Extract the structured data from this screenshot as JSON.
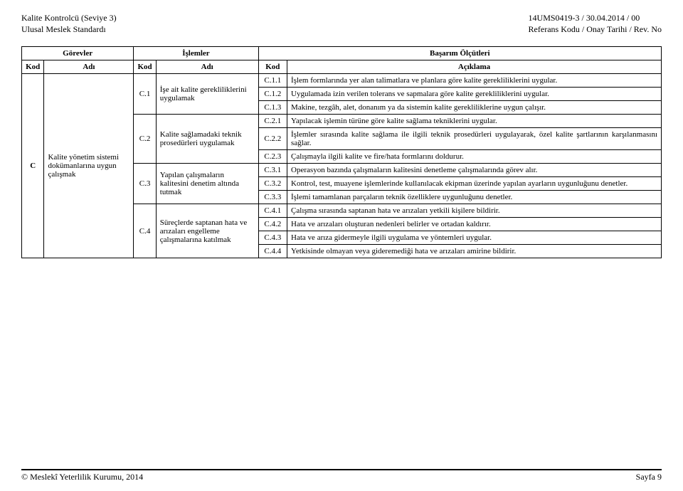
{
  "header": {
    "title_left_1": "Kalite Kontrolcü  (Seviye 3)",
    "title_left_2": "Ulusal Meslek Standardı",
    "title_right_1": "14UMS0419-3 / 30.04.2014 /     00",
    "title_right_2": "Referans Kodu / Onay Tarihi / Rev. No"
  },
  "table": {
    "top_headers": {
      "gorevler": "Görevler",
      "islemler": "İşlemler",
      "basarim": "Başarım Ölçütleri"
    },
    "sub_headers": {
      "kod": "Kod",
      "adi": "Adı",
      "aciklama": "Açıklama"
    },
    "gorev": {
      "kod": "C",
      "adi": "Kalite yönetim sistemi dokümanlarına uygun çalışmak"
    },
    "islemler": [
      {
        "kod": "C.1",
        "adi": "İşe ait kalite gerekliliklerini uygulamak"
      },
      {
        "kod": "C.2",
        "adi": "Kalite sağlamadaki teknik prosedürleri uygulamak"
      },
      {
        "kod": "C.3",
        "adi": "Yapılan çalışmaların kalitesini denetim altında tutmak"
      },
      {
        "kod": "C.4",
        "adi": "Süreçlerde saptanan hata ve arızaları engelleme çalışmalarına katılmak"
      }
    ],
    "olcutler": [
      {
        "kod": "C.1.1",
        "txt": "İşlem formlarında yer alan talimatlara ve planlara göre kalite gerekliliklerini uygular."
      },
      {
        "kod": "C.1.2",
        "txt": "Uygulamada izin verilen tolerans ve sapmalara göre kalite gerekliliklerini uygular."
      },
      {
        "kod": "C.1.3",
        "txt": "Makine, tezgâh, alet, donanım ya da sistemin kalite gerekliliklerine uygun çalışır."
      },
      {
        "kod": "C.2.1",
        "txt": "Yapılacak işlemin türüne göre kalite sağlama tekniklerini uygular."
      },
      {
        "kod": "C.2.2",
        "txt": "İşlemler sırasında kalite sağlama ile ilgili teknik prosedürleri uygulayarak, özel kalite şartlarının karşılanmasını sağlar."
      },
      {
        "kod": "C.2.3",
        "txt": "Çalışmayla ilgili kalite ve fire/hata formlarını doldurur."
      },
      {
        "kod": "C.3.1",
        "txt": "Operasyon bazında çalışmaların kalitesini denetleme çalışmalarında görev alır."
      },
      {
        "kod": "C.3.2",
        "txt": "Kontrol, test, muayene işlemlerinde kullanılacak ekipman üzerinde yapılan ayarların uygunluğunu denetler."
      },
      {
        "kod": "C.3.3",
        "txt": "İşlemi tamamlanan parçaların teknik özelliklere uygunluğunu denetler."
      },
      {
        "kod": "C.4.1",
        "txt": "Çalışma sırasında saptanan hata ve arızaları yetkili kişilere bildirir."
      },
      {
        "kod": "C.4.2",
        "txt": "Hata ve arızaları oluşturan nedenleri belirler ve ortadan kaldırır."
      },
      {
        "kod": "C.4.3",
        "txt": "Hata ve arıza gidermeyle ilgili uygulama ve yöntemleri uygular."
      },
      {
        "kod": "C.4.4",
        "txt": "Yetkisinde olmayan veya gideremediği hata ve arızaları amirine bildirir."
      }
    ]
  },
  "footer": {
    "left": "© Meslekî Yeterlilik Kurumu, 2014",
    "right": "Sayfa 9"
  }
}
